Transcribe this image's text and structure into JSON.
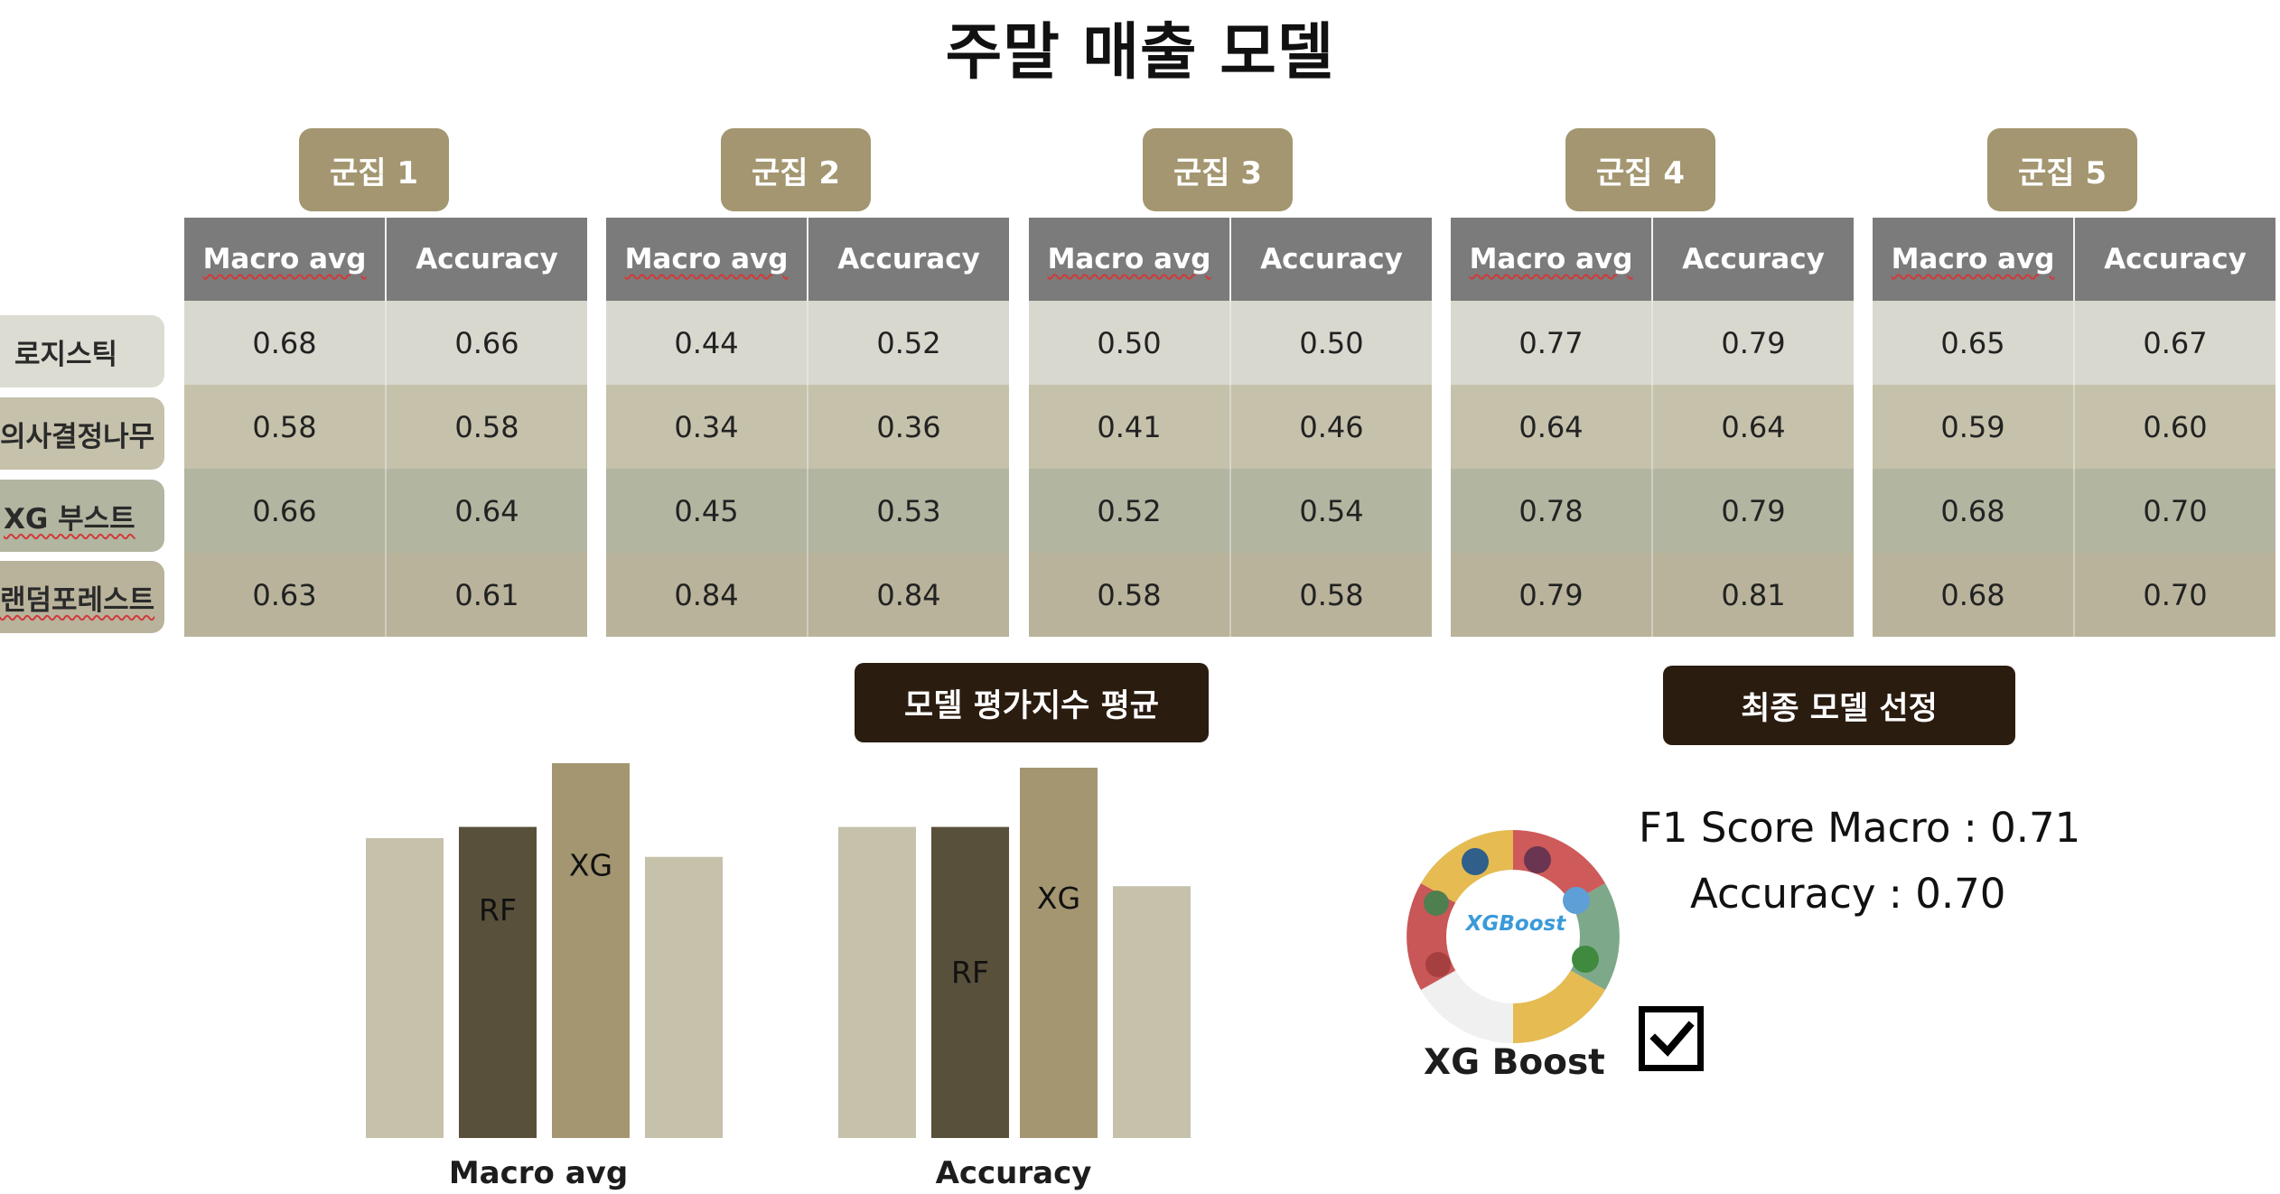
{
  "title": "주말 매출 모델",
  "table": {
    "clusters": [
      "군집 1",
      "군집 2",
      "군집 3",
      "군집 4",
      "군집 5"
    ],
    "metric_headers": [
      "Macro avg",
      "Accuracy"
    ],
    "rows": [
      {
        "model": "로지스틱",
        "values": [
          [
            "0.68",
            "0.66"
          ],
          [
            "0.44",
            "0.52"
          ],
          [
            "0.50",
            "0.50"
          ],
          [
            "0.77",
            "0.79"
          ],
          [
            "0.65",
            "0.67"
          ]
        ]
      },
      {
        "model": "의사결정나무",
        "values": [
          [
            "0.58",
            "0.58"
          ],
          [
            "0.34",
            "0.36"
          ],
          [
            "0.41",
            "0.46"
          ],
          [
            "0.64",
            "0.64"
          ],
          [
            "0.59",
            "0.60"
          ]
        ]
      },
      {
        "model": "XG 부스트",
        "values": [
          [
            "0.66",
            "0.64"
          ],
          [
            "0.45",
            "0.53"
          ],
          [
            "0.52",
            "0.54"
          ],
          [
            "0.78",
            "0.79"
          ],
          [
            "0.68",
            "0.70"
          ]
        ]
      },
      {
        "model": "랜덤포레스트",
        "values": [
          [
            "0.63",
            "0.61"
          ],
          [
            "0.84",
            "0.84"
          ],
          [
            "0.58",
            "0.58"
          ],
          [
            "0.79",
            "0.81"
          ],
          [
            "0.68",
            "0.70"
          ]
        ]
      }
    ],
    "row_colors": [
      "#d8d8cf",
      "#c5c1ab",
      "#b2b5a0",
      "#b9b39c"
    ]
  },
  "eval_avg_label": "모델 평가지수 평균",
  "final_select_label": "최종 모델 선정",
  "chart_data": [
    {
      "type": "bar",
      "title": "",
      "xlabel": "Macro avg",
      "ylabel": "",
      "bars": [
        {
          "label": "",
          "value": 0.8,
          "color": "#c5c1ab"
        },
        {
          "label": "RF",
          "value": 0.83,
          "color": "#58503a"
        },
        {
          "label": "XG",
          "value": 1.0,
          "color": "#a39670"
        },
        {
          "label": "",
          "value": 0.75,
          "color": "#c5c1ab"
        }
      ],
      "ylim": [
        0,
        1.0
      ],
      "grid": false
    },
    {
      "type": "bar",
      "title": "",
      "xlabel": "Accuracy",
      "ylabel": "",
      "bars": [
        {
          "label": "",
          "value": 0.84,
          "color": "#c5c1ab"
        },
        {
          "label": "RF",
          "value": 0.84,
          "color": "#58503a"
        },
        {
          "label": "XG",
          "value": 1.0,
          "color": "#a39670"
        },
        {
          "label": "",
          "value": 0.68,
          "color": "#c5c1ab"
        }
      ],
      "ylim": [
        0,
        1.0
      ],
      "grid": false
    }
  ],
  "final": {
    "f1_line": "F1 Score Macro : 0.71",
    "acc_line": "Accuracy : 0.70",
    "logo_text": "XGBoost",
    "caption": "XG Boost",
    "checked": true
  }
}
